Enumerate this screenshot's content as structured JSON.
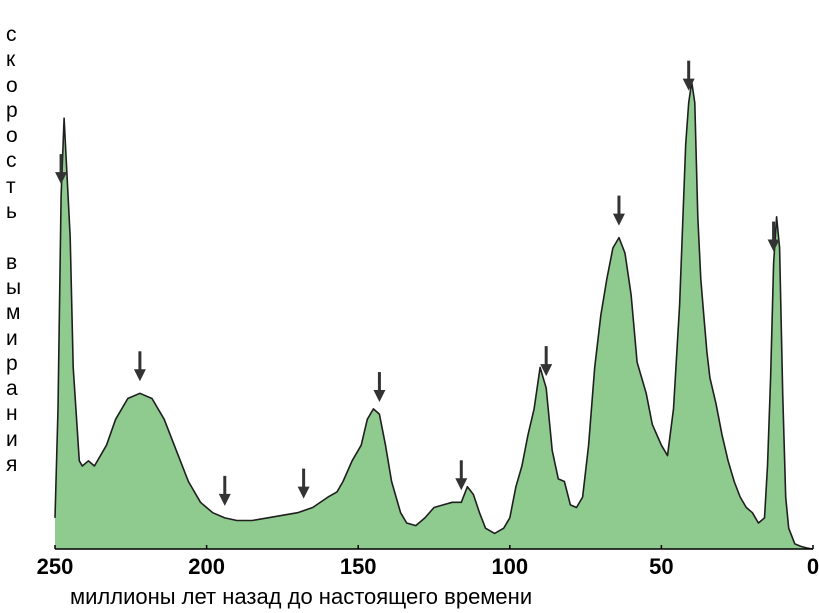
{
  "chart_data": {
    "type": "area",
    "title": "",
    "ylabel": "скорость вымирания",
    "xlabel": "миллионы лет назад до настоящего времени",
    "x_reversed": true,
    "xlim": [
      250,
      0
    ],
    "ylim": [
      0,
      1
    ],
    "x_ticks": [
      250,
      200,
      150,
      100,
      50,
      0
    ],
    "x_tick_labels": [
      "250",
      "200",
      "150",
      "100",
      "50",
      "0"
    ],
    "fill_color": "#8fca8f",
    "line_color": "#1f1f1f",
    "arrow_color": "#333333",
    "grid": false,
    "series": [
      {
        "x": [
          250,
          249,
          248,
          247,
          245,
          244,
          242,
          241,
          239,
          237,
          233,
          230,
          226,
          222,
          218,
          214,
          210,
          206,
          202,
          198,
          194,
          190,
          185,
          180,
          175,
          170,
          165,
          160,
          157,
          155,
          152,
          149,
          147,
          145,
          143,
          141,
          139,
          136,
          134,
          131,
          128,
          125,
          122,
          119,
          116,
          114,
          112,
          110,
          108,
          105,
          102,
          100,
          98,
          96,
          94,
          92,
          90,
          88,
          86,
          84,
          82,
          80,
          78,
          76,
          74,
          72,
          70,
          68,
          66,
          64,
          62,
          60,
          58,
          55,
          53,
          50,
          48,
          46,
          44,
          42,
          41,
          40,
          39,
          38,
          37,
          36,
          35,
          34,
          32,
          30,
          28,
          26,
          24,
          22,
          20,
          18,
          16,
          15,
          14,
          13,
          12,
          11,
          10,
          9,
          8,
          6,
          4,
          2,
          0
        ],
        "values": [
          0.06,
          0.27,
          0.68,
          0.83,
          0.6,
          0.35,
          0.17,
          0.16,
          0.17,
          0.16,
          0.2,
          0.25,
          0.29,
          0.3,
          0.29,
          0.25,
          0.19,
          0.13,
          0.09,
          0.07,
          0.06,
          0.055,
          0.055,
          0.06,
          0.065,
          0.07,
          0.08,
          0.1,
          0.11,
          0.13,
          0.17,
          0.2,
          0.25,
          0.27,
          0.26,
          0.2,
          0.13,
          0.07,
          0.05,
          0.045,
          0.06,
          0.08,
          0.085,
          0.09,
          0.09,
          0.12,
          0.105,
          0.07,
          0.04,
          0.03,
          0.04,
          0.06,
          0.12,
          0.16,
          0.22,
          0.27,
          0.35,
          0.31,
          0.19,
          0.135,
          0.13,
          0.085,
          0.08,
          0.1,
          0.2,
          0.35,
          0.45,
          0.52,
          0.58,
          0.6,
          0.57,
          0.49,
          0.36,
          0.3,
          0.24,
          0.2,
          0.18,
          0.27,
          0.47,
          0.78,
          0.86,
          0.9,
          0.86,
          0.64,
          0.52,
          0.45,
          0.38,
          0.33,
          0.28,
          0.22,
          0.17,
          0.13,
          0.1,
          0.08,
          0.07,
          0.05,
          0.06,
          0.16,
          0.33,
          0.55,
          0.64,
          0.58,
          0.3,
          0.1,
          0.04,
          0.01,
          0.005,
          0.002,
          0
        ]
      }
    ],
    "arrows_at_x": [
      248,
      222,
      194,
      168,
      143,
      116,
      88,
      64,
      41,
      13
    ]
  }
}
